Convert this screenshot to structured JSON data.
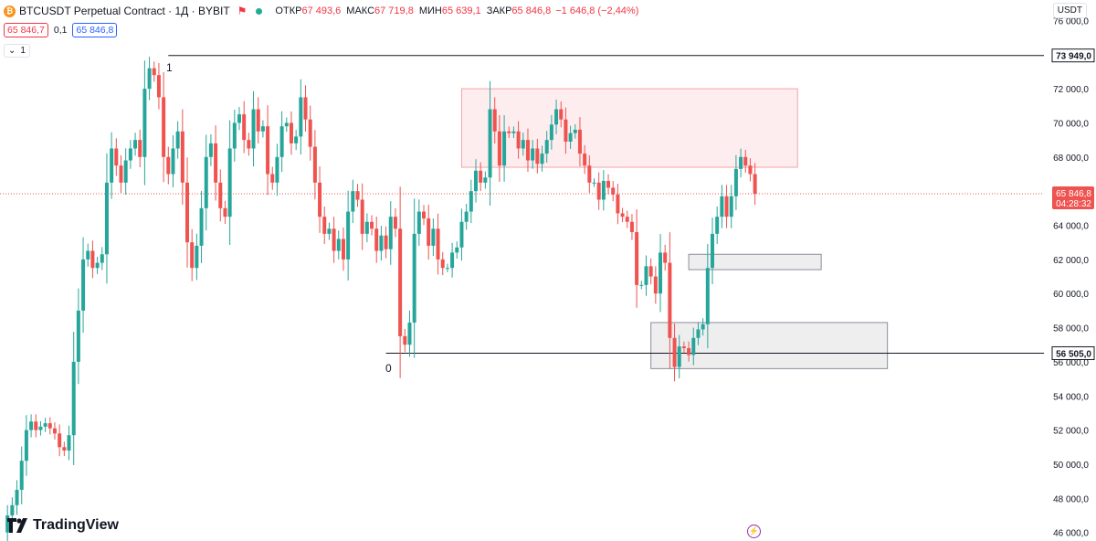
{
  "header": {
    "symbol_icon": "bitcoin-icon",
    "title": "BTCUSDT Perpetual Contract · 1Д · BYBIT",
    "flag_icon": "flag-icon",
    "open_label": "ОТКР",
    "open_value": "67 493,6",
    "high_label": "МАКС",
    "high_value": "67 719,8",
    "low_label": "МИН",
    "low_value": "65 639,1",
    "close_label": "ЗАКР",
    "close_value": "65 846,8",
    "change": "−1 646,8 (−2,44%)"
  },
  "bidask": {
    "sell": "65 846,7",
    "spread": "0,1",
    "buy": "65 846,8"
  },
  "indicators": {
    "count": "1",
    "toggle_icon": "chevron-down-icon"
  },
  "currency": "USDT",
  "brand": "TradingView",
  "chart_data": {
    "type": "candlestick",
    "y_axis": {
      "min": 45500,
      "max": 77200,
      "ticks": [
        "76 000,0",
        "74 000,0",
        "72 000,0",
        "70 000,0",
        "68 000,0",
        "66 000,0",
        "64 000,0",
        "62 000,0",
        "60 000,0",
        "58 000,0",
        "56 000,0",
        "54 000,0",
        "52 000,0",
        "50 000,0",
        "48 000,0",
        "46 000,0"
      ],
      "tick_values": [
        76000,
        74000,
        72000,
        70000,
        68000,
        66000,
        64000,
        62000,
        60000,
        58000,
        56000,
        54000,
        52000,
        50000,
        48000,
        46000
      ]
    },
    "levels": [
      {
        "value": 73949,
        "label": "73 949,0"
      },
      {
        "value": 56505,
        "label": "56 505,0"
      }
    ],
    "level_markers": [
      "1",
      "0"
    ],
    "current_price": {
      "value": 65846.8,
      "label": "65 846,8",
      "countdown": "04:28:32"
    },
    "zones": [
      {
        "kind": "supply",
        "from_bar": 97,
        "to_bar": 168,
        "low": 67400,
        "high": 72000
      },
      {
        "kind": "demand",
        "from_bar": 145,
        "to_bar": 173,
        "low": 61400,
        "high": 62300
      },
      {
        "kind": "demand",
        "from_bar": 137,
        "to_bar": 187,
        "low": 55600,
        "high": 58300
      }
    ],
    "colors": {
      "up": "#26a69a",
      "down": "#ef5350",
      "supply": "#f7c1c4",
      "demand": "#c5c8d0"
    },
    "closes": [
      46000,
      47000,
      47600,
      48500,
      50200,
      52000,
      52500,
      52000,
      52200,
      52400,
      52100,
      51800,
      51000,
      50800,
      51700,
      56000,
      59000,
      62000,
      62500,
      61500,
      61800,
      62300,
      66500,
      68500,
      67500,
      66500,
      67800,
      68500,
      69000,
      68000,
      72000,
      73200,
      72800,
      71500,
      68000,
      67000,
      68500,
      69500,
      66500,
      63000,
      61500,
      62800,
      65000,
      68000,
      68800,
      66500,
      65000,
      64500,
      68500,
      70000,
      70500,
      69000,
      68500,
      70800,
      69500,
      69800,
      67000,
      66500,
      68000,
      69800,
      70000,
      68800,
      69200,
      71500,
      70200,
      68600,
      66500,
      64500,
      63500,
      63800,
      62500,
      63200,
      62000,
      64800,
      66000,
      65500,
      63500,
      64200,
      63800,
      62500,
      63400,
      62600,
      64500,
      63800,
      57500,
      57000,
      58300,
      63500,
      64800,
      64400,
      62800,
      63800,
      62000,
      61500,
      61500,
      62400,
      62700,
      64200,
      64800,
      66000,
      67200,
      66500,
      66800,
      70800,
      69500,
      67500,
      69500,
      69400,
      69500,
      68500,
      69000,
      67800,
      68500,
      67600,
      68200,
      69000,
      69900,
      70800,
      70200,
      68900,
      69400,
      69600,
      68200,
      67500,
      66500,
      66500,
      65500,
      66600,
      66200,
      65800,
      64700,
      64500,
      64200,
      63600,
      60500,
      60500,
      61600,
      61000,
      60000,
      62400,
      61800,
      57400,
      55700,
      56900,
      56800,
      56400,
      57400,
      57900,
      58200,
      61500,
      63500,
      64500,
      65700,
      64500,
      65700,
      67300,
      68000,
      67500,
      67000,
      65846.8
    ]
  }
}
